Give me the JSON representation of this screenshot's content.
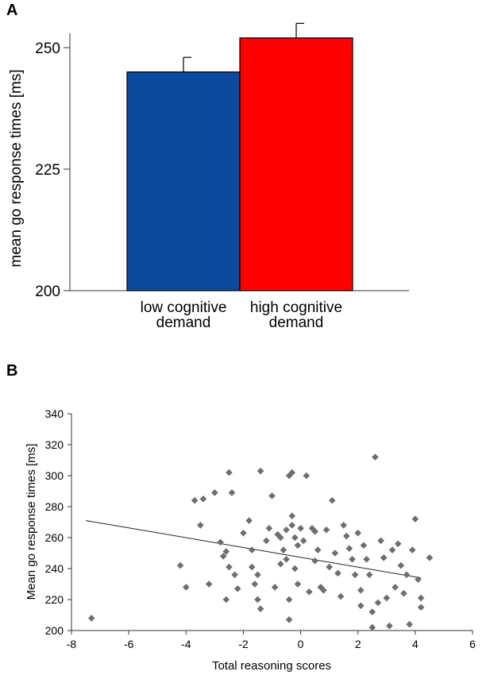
{
  "chart_data": [
    {
      "panel": "A",
      "type": "bar",
      "title": "",
      "xlabel": "",
      "ylabel": "mean go response times [ms]",
      "ylim": [
        200,
        250
      ],
      "yticks": [
        "200",
        "225",
        "250"
      ],
      "categories": [
        [
          "low cognitive",
          "demand"
        ],
        [
          "high cognitive",
          "demand"
        ]
      ],
      "values": [
        245,
        252
      ],
      "errors": [
        3,
        3
      ],
      "colors": [
        "#0b4a9c",
        "#ff0000"
      ]
    },
    {
      "panel": "B",
      "type": "scatter",
      "title": "",
      "xlabel": "Total reasoning scores",
      "ylabel": "Mean go response times [ms]",
      "xlim": [
        -8,
        6
      ],
      "ylim": [
        200,
        340
      ],
      "xticks": [
        "-8",
        "-6",
        "-4",
        "-2",
        "0",
        "2",
        "4",
        "6"
      ],
      "yticks": [
        "200",
        "220",
        "240",
        "260",
        "280",
        "300",
        "320",
        "340"
      ],
      "marker_color": "#6e6e6e",
      "trendline": {
        "x": [
          -7.5,
          4.2
        ],
        "y": [
          271,
          234
        ]
      },
      "points": [
        [
          -7.3,
          208
        ],
        [
          -4.2,
          242
        ],
        [
          -4.0,
          228
        ],
        [
          -3.7,
          284
        ],
        [
          -3.5,
          268
        ],
        [
          -3.4,
          285
        ],
        [
          -3.2,
          230
        ],
        [
          -3.0,
          289
        ],
        [
          -2.8,
          257
        ],
        [
          -2.7,
          248
        ],
        [
          -2.6,
          220
        ],
        [
          -2.6,
          251
        ],
        [
          -2.5,
          302
        ],
        [
          -2.5,
          241
        ],
        [
          -2.4,
          289
        ],
        [
          -2.3,
          236
        ],
        [
          -2.2,
          227
        ],
        [
          -2.0,
          263
        ],
        [
          -1.8,
          271
        ],
        [
          -1.7,
          241
        ],
        [
          -1.7,
          252
        ],
        [
          -1.6,
          230
        ],
        [
          -1.5,
          220
        ],
        [
          -1.5,
          236
        ],
        [
          -1.4,
          303
        ],
        [
          -1.4,
          214
        ],
        [
          -1.2,
          258
        ],
        [
          -1.1,
          266
        ],
        [
          -1.0,
          287
        ],
        [
          -0.9,
          228
        ],
        [
          -0.8,
          262
        ],
        [
          -0.7,
          260
        ],
        [
          -0.7,
          243
        ],
        [
          -0.6,
          252
        ],
        [
          -0.5,
          265
        ],
        [
          -0.5,
          246
        ],
        [
          -0.4,
          207
        ],
        [
          -0.4,
          220
        ],
        [
          -0.4,
          300
        ],
        [
          -0.3,
          302
        ],
        [
          -0.3,
          274
        ],
        [
          -0.3,
          268
        ],
        [
          -0.2,
          260
        ],
        [
          -0.2,
          240
        ],
        [
          -0.1,
          255
        ],
        [
          -0.1,
          230
        ],
        [
          0.0,
          266
        ],
        [
          0.1,
          258
        ],
        [
          0.2,
          300
        ],
        [
          0.3,
          225
        ],
        [
          0.4,
          266
        ],
        [
          0.5,
          264
        ],
        [
          0.5,
          245
        ],
        [
          0.6,
          252
        ],
        [
          0.7,
          228
        ],
        [
          0.8,
          226
        ],
        [
          0.9,
          265
        ],
        [
          1.0,
          241
        ],
        [
          1.1,
          284
        ],
        [
          1.2,
          250
        ],
        [
          1.3,
          237
        ],
        [
          1.4,
          222
        ],
        [
          1.5,
          268
        ],
        [
          1.6,
          261
        ],
        [
          1.7,
          253
        ],
        [
          1.8,
          246
        ],
        [
          1.9,
          236
        ],
        [
          2.0,
          263
        ],
        [
          2.1,
          216
        ],
        [
          2.1,
          226
        ],
        [
          2.2,
          255
        ],
        [
          2.3,
          246
        ],
        [
          2.4,
          236
        ],
        [
          2.5,
          202
        ],
        [
          2.5,
          212
        ],
        [
          2.6,
          312
        ],
        [
          2.7,
          218
        ],
        [
          2.8,
          258
        ],
        [
          2.9,
          247
        ],
        [
          3.0,
          221
        ],
        [
          3.1,
          203
        ],
        [
          3.2,
          252
        ],
        [
          3.3,
          228
        ],
        [
          3.4,
          256
        ],
        [
          3.5,
          242
        ],
        [
          3.6,
          224
        ],
        [
          3.7,
          236
        ],
        [
          3.8,
          204
        ],
        [
          3.9,
          252
        ],
        [
          4.0,
          272
        ],
        [
          4.1,
          233
        ],
        [
          4.2,
          221
        ],
        [
          4.2,
          215
        ],
        [
          4.5,
          247
        ]
      ]
    }
  ]
}
